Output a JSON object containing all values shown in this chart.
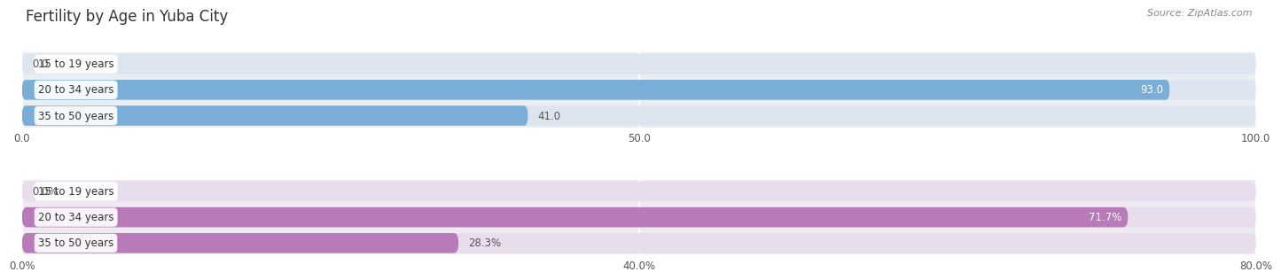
{
  "title": "Fertility by Age in Yuba City",
  "source": "Source: ZipAtlas.com",
  "top_section": {
    "categories": [
      "15 to 19 years",
      "20 to 34 years",
      "35 to 50 years"
    ],
    "values": [
      0.0,
      93.0,
      41.0
    ],
    "max_value": 100.0,
    "tick_values": [
      0.0,
      50.0,
      100.0
    ],
    "tick_labels": [
      "0.0",
      "50.0",
      "100.0"
    ],
    "bar_color": "#7aaed6",
    "bar_bg_color": "#dde6f0",
    "section_bg_color": "#eaedf2"
  },
  "bottom_section": {
    "categories": [
      "15 to 19 years",
      "20 to 34 years",
      "35 to 50 years"
    ],
    "values": [
      0.0,
      71.7,
      28.3
    ],
    "max_value": 80.0,
    "tick_values": [
      0.0,
      40.0,
      80.0
    ],
    "tick_labels": [
      "0.0%",
      "40.0%",
      "80.0%"
    ],
    "bar_color": "#b87ab8",
    "bar_bg_color": "#e8dded",
    "section_bg_color": "#edeaf2"
  },
  "label_fontsize": 8.5,
  "tick_fontsize": 8.5,
  "title_fontsize": 12,
  "source_fontsize": 8,
  "title_color": "#333333",
  "tick_color": "#555555",
  "value_label_color_inside": "#ffffff",
  "value_label_color_outside": "#555555",
  "label_box_color": "#ffffff"
}
